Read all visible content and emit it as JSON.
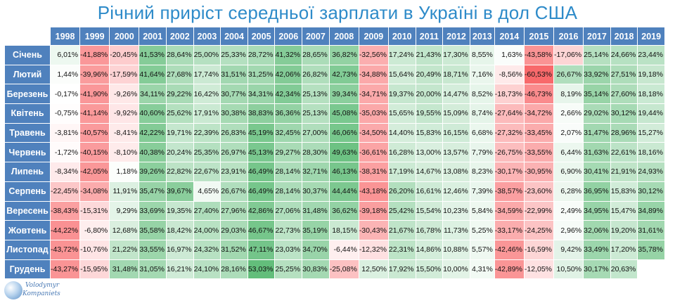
{
  "title": "Річний приріст середньої зарплати в Україні в дол США",
  "logo": {
    "line1": "Volodymyr",
    "line2": "Kompaniets"
  },
  "colors": {
    "header": "#4f81bd",
    "positive": "#63be7b",
    "negative": "#f8696b",
    "neutral": "#ffffff",
    "title": "#2e8bc9"
  },
  "chart_data": {
    "type": "table",
    "title": "Річний приріст середньої зарплати в Україні в дол США",
    "years": [
      "1998",
      "1999",
      "2000",
      "2001",
      "2002",
      "2003",
      "2004",
      "2005",
      "2006",
      "2007",
      "2008",
      "2009",
      "2010",
      "2011",
      "2012",
      "2013",
      "2014",
      "2015",
      "2016",
      "2017",
      "2018",
      "2019"
    ],
    "rows": [
      {
        "month": "Січень",
        "values": [
          "6,01%",
          "-41,88%",
          "-20,45%",
          "41,53%",
          "28,64%",
          "25,00%",
          "25,33%",
          "28,72%",
          "41,32%",
          "28,65%",
          "36,82%",
          "-32,56%",
          "17,24%",
          "21,43%",
          "17,30%",
          "8,55%",
          "1,63%",
          "-43,58%",
          "-17,06%",
          "25,14%",
          "24,66%",
          "23,44%"
        ]
      },
      {
        "month": "Лютий",
        "values": [
          "1,44%",
          "-39,96%",
          "-17,59%",
          "41,64%",
          "27,68%",
          "17,74%",
          "31,51%",
          "31,25%",
          "42,06%",
          "26,82%",
          "42,73%",
          "-34,88%",
          "15,64%",
          "20,49%",
          "18,71%",
          "7,16%",
          "-8,56%",
          "-60,53%",
          "26,67%",
          "33,92%",
          "27,51%",
          "19,18%"
        ]
      },
      {
        "month": "Березень",
        "values": [
          "-0,17%",
          "-41,90%",
          "-9,26%",
          "34,11%",
          "29,22%",
          "16,42%",
          "30,77%",
          "34,31%",
          "42,34%",
          "25,13%",
          "39,34%",
          "-34,71%",
          "19,37%",
          "20,00%",
          "14,47%",
          "8,52%",
          "-18,73%",
          "-46,73%",
          "8,19%",
          "35,14%",
          "27,60%",
          "18,18%"
        ]
      },
      {
        "month": "Квітень",
        "values": [
          "-0,75%",
          "-41,14%",
          "-9,92%",
          "40,60%",
          "25,62%",
          "17,91%",
          "30,38%",
          "38,83%",
          "36,36%",
          "25,13%",
          "45,08%",
          "-35,03%",
          "15,65%",
          "19,55%",
          "15,09%",
          "8,74%",
          "-27,64%",
          "-34,72%",
          "2,66%",
          "29,02%",
          "30,12%",
          "19,44%"
        ]
      },
      {
        "month": "Травень",
        "values": [
          "-3,81%",
          "-40,57%",
          "-8,41%",
          "42,22%",
          "19,71%",
          "22,39%",
          "26,83%",
          "45,19%",
          "32,45%",
          "27,00%",
          "46,06%",
          "-34,50%",
          "14,40%",
          "15,83%",
          "16,15%",
          "6,68%",
          "-27,32%",
          "-33,45%",
          "2,07%",
          "31,47%",
          "28,96%",
          "15,27%"
        ]
      },
      {
        "month": "Червень",
        "values": [
          "-1,72%",
          "-40,15%",
          "-8,10%",
          "40,38%",
          "20,24%",
          "25,35%",
          "26,97%",
          "45,13%",
          "29,27%",
          "28,30%",
          "49,63%",
          "-36,61%",
          "16,28%",
          "13,00%",
          "13,57%",
          "7,79%",
          "-26,75%",
          "-33,55%",
          "6,44%",
          "31,63%",
          "22,61%",
          "18,16%"
        ]
      },
      {
        "month": "Липень",
        "values": [
          "-8,34%",
          "-42,05%",
          "1,18%",
          "39,26%",
          "22,82%",
          "22,67%",
          "23,91%",
          "46,49%",
          "28,14%",
          "32,71%",
          "46,13%",
          "-38,31%",
          "17,19%",
          "14,67%",
          "13,08%",
          "8,23%",
          "-30,17%",
          "-30,95%",
          "6,90%",
          "30,41%",
          "21,91%",
          "24,93%"
        ]
      },
      {
        "month": "Серпень",
        "values": [
          "-22,45%",
          "-34,08%",
          "11,91%",
          "35,47%",
          "39,67%",
          "4,65%",
          "26,67%",
          "46,49%",
          "28,14%",
          "30,37%",
          "44,44%",
          "-43,18%",
          "26,20%",
          "16,61%",
          "12,46%",
          "7,39%",
          "-38,57%",
          "-23,60%",
          "6,28%",
          "36,95%",
          "15,83%",
          "30,12%"
        ]
      },
      {
        "month": "Вересень",
        "values": [
          "-38,43%",
          "-15,31%",
          "9,29%",
          "33,69%",
          "19,35%",
          "27,40%",
          "27,96%",
          "42,86%",
          "27,06%",
          "31,48%",
          "36,62%",
          "-39,18%",
          "25,42%",
          "15,54%",
          "10,23%",
          "5,84%",
          "-34,59%",
          "-22,99%",
          "2,49%",
          "34,95%",
          "15,47%",
          "34,89%"
        ]
      },
      {
        "month": "Жовтень",
        "values": [
          "-44,22%",
          "-6,80%",
          "12,68%",
          "35,58%",
          "18,42%",
          "24,00%",
          "29,03%",
          "46,67%",
          "22,73%",
          "35,19%",
          "18,15%",
          "-30,43%",
          "21,67%",
          "16,78%",
          "11,73%",
          "5,25%",
          "-33,17%",
          "-24,25%",
          "2,96%",
          "32,06%",
          "19,20%",
          "31,61%"
        ]
      },
      {
        "month": "Листопад",
        "values": [
          "-43,72%",
          "-10,76%",
          "21,22%",
          "33,55%",
          "16,97%",
          "24,32%",
          "31,52%",
          "47,11%",
          "23,03%",
          "34,70%",
          "-6,44%",
          "-12,32%",
          "22,31%",
          "14,86%",
          "10,88%",
          "5,57%",
          "-42,46%",
          "-16,59%",
          "9,42%",
          "33,49%",
          "17,20%",
          "35,78%"
        ]
      },
      {
        "month": "Грудень",
        "values": [
          "-43,27%",
          "-15,95%",
          "31,48%",
          "31,05%",
          "16,21%",
          "24,10%",
          "28,16%",
          "53,03%",
          "25,25%",
          "30,83%",
          "-25,08%",
          "12,50%",
          "17,92%",
          "15,50%",
          "10,00%",
          "4,31%",
          "-42,89%",
          "-12,05%",
          "10,50%",
          "30,17%",
          "20,63%",
          ""
        ]
      }
    ]
  }
}
